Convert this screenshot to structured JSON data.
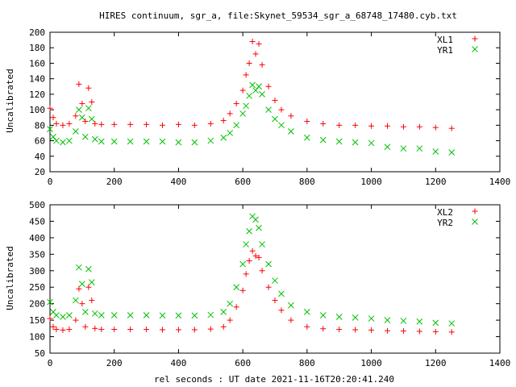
{
  "chart_data": {
    "type": "scatter",
    "title": "HIRES continuum, sgr_a, file:Skynet_59534_sgr_a_68748_17480.cyb.txt",
    "xlabel": "rel seconds : UT date 2021-11-16T20:20:41.240",
    "colors": {
      "red": "#ff0000",
      "green": "#00c000"
    },
    "panels": [
      {
        "ylabel": "Uncalibrated",
        "xlim": [
          0,
          1400
        ],
        "ylim": [
          20,
          200
        ],
        "xticks": [
          0,
          200,
          400,
          600,
          800,
          1000,
          1200,
          1400
        ],
        "yticks": [
          20,
          40,
          60,
          80,
          100,
          120,
          140,
          160,
          180,
          200
        ],
        "grid": false,
        "legend_position": "top-right",
        "series": [
          {
            "name": "XL1",
            "marker": "plus",
            "color": "#ff0000",
            "x": [
              0,
              10,
              20,
              40,
              60,
              80,
              90,
              100,
              110,
              120,
              130,
              140,
              160,
              200,
              250,
              300,
              350,
              400,
              450,
              500,
              540,
              560,
              580,
              600,
              610,
              620,
              630,
              640,
              650,
              660,
              680,
              700,
              720,
              750,
              800,
              850,
              900,
              950,
              1000,
              1050,
              1100,
              1150,
              1200,
              1250
            ],
            "y": [
              102,
              90,
              82,
              80,
              82,
              92,
              133,
              108,
              85,
              128,
              110,
              82,
              81,
              81,
              81,
              81,
              80,
              81,
              80,
              82,
              86,
              95,
              108,
              125,
              145,
              160,
              188,
              172,
              185,
              158,
              130,
              112,
              100,
              92,
              85,
              82,
              80,
              80,
              79,
              79,
              78,
              78,
              77,
              76
            ]
          },
          {
            "name": "YR1",
            "marker": "cross",
            "color": "#00c000",
            "x": [
              0,
              10,
              20,
              40,
              60,
              80,
              90,
              100,
              110,
              120,
              130,
              140,
              160,
              200,
              250,
              300,
              350,
              400,
              450,
              500,
              540,
              560,
              580,
              600,
              610,
              620,
              630,
              640,
              650,
              660,
              680,
              700,
              720,
              750,
              800,
              850,
              900,
              950,
              1000,
              1050,
              1100,
              1150,
              1200,
              1250
            ],
            "y": [
              75,
              65,
              60,
              58,
              60,
              72,
              100,
              90,
              65,
              102,
              88,
              62,
              59,
              59,
              59,
              59,
              59,
              58,
              58,
              60,
              64,
              70,
              80,
              95,
              105,
              118,
              132,
              125,
              130,
              120,
              100,
              88,
              80,
              72,
              64,
              61,
              59,
              58,
              57,
              52,
              50,
              50,
              46,
              45
            ]
          }
        ]
      },
      {
        "ylabel": "Uncalibrated",
        "xlim": [
          0,
          1400
        ],
        "ylim": [
          50,
          500
        ],
        "xticks": [
          0,
          200,
          400,
          600,
          800,
          1000,
          1200,
          1400
        ],
        "yticks": [
          50,
          100,
          150,
          200,
          250,
          300,
          350,
          400,
          450,
          500
        ],
        "grid": false,
        "legend_position": "top-right",
        "series": [
          {
            "name": "XL2",
            "marker": "plus",
            "color": "#ff0000",
            "x": [
              0,
              10,
              20,
              40,
              60,
              80,
              90,
              100,
              110,
              120,
              130,
              140,
              160,
              200,
              250,
              300,
              350,
              400,
              450,
              500,
              540,
              560,
              580,
              600,
              610,
              620,
              630,
              640,
              650,
              660,
              680,
              700,
              720,
              750,
              800,
              850,
              900,
              950,
              1000,
              1050,
              1100,
              1150,
              1200,
              1250
            ],
            "y": [
              155,
              130,
              122,
              120,
              122,
              150,
              245,
              200,
              130,
              250,
              210,
              125,
              122,
              122,
              122,
              122,
              121,
              121,
              121,
              123,
              130,
              150,
              190,
              240,
              290,
              330,
              360,
              345,
              340,
              300,
              250,
              210,
              180,
              150,
              130,
              124,
              122,
              121,
              120,
              118,
              117,
              116,
              115,
              114
            ]
          },
          {
            "name": "YR2",
            "marker": "cross",
            "color": "#00c000",
            "x": [
              0,
              10,
              20,
              40,
              60,
              80,
              90,
              100,
              110,
              120,
              130,
              140,
              160,
              200,
              250,
              300,
              350,
              400,
              450,
              500,
              540,
              560,
              580,
              600,
              610,
              620,
              630,
              640,
              650,
              660,
              680,
              700,
              720,
              750,
              800,
              850,
              900,
              950,
              1000,
              1050,
              1100,
              1150,
              1200,
              1250
            ],
            "y": [
              205,
              175,
              165,
              160,
              165,
              210,
              310,
              260,
              175,
              305,
              265,
              170,
              165,
              165,
              165,
              165,
              164,
              164,
              164,
              166,
              175,
              200,
              250,
              320,
              380,
              420,
              465,
              455,
              430,
              380,
              320,
              270,
              230,
              195,
              175,
              165,
              160,
              158,
              155,
              150,
              148,
              146,
              142,
              140
            ]
          }
        ]
      }
    ]
  }
}
